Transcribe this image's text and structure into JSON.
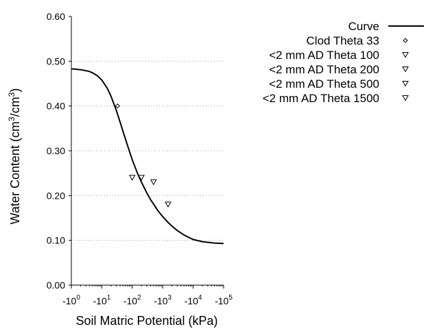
{
  "chart_data": {
    "type": "scatter",
    "xlabel": "Soil Matric Potential (kPa)",
    "ylabel": {
      "prefix": "Water Content (cm",
      "sup1": "3",
      "mid": "/cm",
      "sup2": "3",
      "suffix": ")"
    },
    "x_scale": "log",
    "xlim": [
      1,
      100000
    ],
    "ylim": [
      0,
      0.6
    ],
    "x_ticks": [
      {
        "value": 1,
        "base": "-10",
        "exp": "0"
      },
      {
        "value": 10,
        "base": "-10",
        "exp": "1"
      },
      {
        "value": 100,
        "base": "-10",
        "exp": "2"
      },
      {
        "value": 1000,
        "base": "-10",
        "exp": "3"
      },
      {
        "value": 10000,
        "base": "-10",
        "exp": "4"
      },
      {
        "value": 100000,
        "base": "-10",
        "exp": "5"
      }
    ],
    "y_ticks": [
      {
        "value": 0,
        "label": "0.00"
      },
      {
        "value": 0.1,
        "label": "0.10"
      },
      {
        "value": 0.2,
        "label": "0.20"
      },
      {
        "value": 0.3,
        "label": "0.30"
      },
      {
        "value": 0.4,
        "label": "0.40"
      },
      {
        "value": 0.5,
        "label": "0.50"
      },
      {
        "value": 0.6,
        "label": "0.60"
      }
    ],
    "grid": {
      "horizontal": true,
      "style": "dotted"
    },
    "legend_position": "right, outside plot",
    "series": [
      {
        "name": "Curve",
        "kind": "line",
        "x": [
          1,
          1.5,
          2,
          3,
          4,
          5,
          7,
          10,
          15,
          20,
          30,
          40,
          50,
          70,
          100,
          150,
          200,
          300,
          400,
          500,
          700,
          1000,
          1500,
          2000,
          3000,
          5000,
          7000,
          10000,
          20000,
          50000,
          100000
        ],
        "y": [
          0.483,
          0.482,
          0.481,
          0.479,
          0.477,
          0.474,
          0.468,
          0.458,
          0.44,
          0.422,
          0.39,
          0.364,
          0.343,
          0.312,
          0.28,
          0.249,
          0.23,
          0.206,
          0.191,
          0.181,
          0.166,
          0.153,
          0.14,
          0.132,
          0.122,
          0.112,
          0.107,
          0.102,
          0.097,
          0.094,
          0.093
        ]
      },
      {
        "name": "Clod Theta 33",
        "kind": "marker",
        "marker": "diamond",
        "x": [
          33
        ],
        "y": [
          0.4
        ]
      },
      {
        "name": "<2 mm AD Theta 100",
        "kind": "marker",
        "marker": "triangle-down",
        "x": [
          100
        ],
        "y": [
          0.24
        ]
      },
      {
        "name": "<2 mm AD Theta 200",
        "kind": "marker",
        "marker": "triangle-down",
        "x": [
          200
        ],
        "y": [
          0.24
        ]
      },
      {
        "name": "<2 mm AD Theta 500",
        "kind": "marker",
        "marker": "triangle-down",
        "x": [
          500
        ],
        "y": [
          0.23
        ]
      },
      {
        "name": "<2 mm AD Theta 1500",
        "kind": "marker",
        "marker": "triangle-down",
        "x": [
          1500
        ],
        "y": [
          0.18
        ]
      }
    ]
  }
}
